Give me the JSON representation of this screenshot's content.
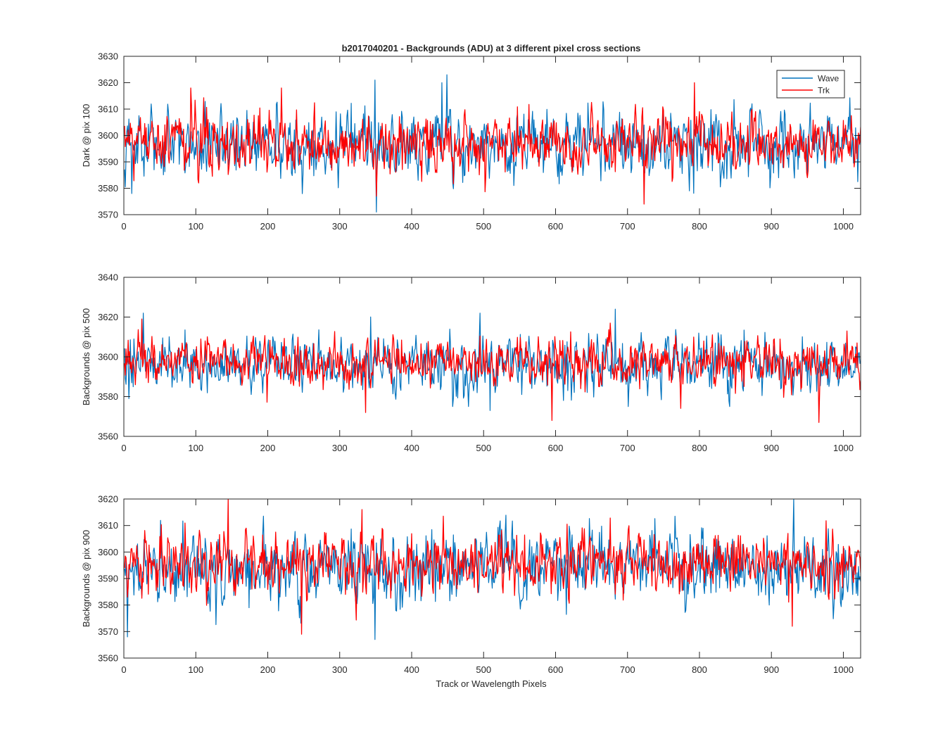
{
  "figure": {
    "title": "b2017040201 - Backgrounds (ADU) at 3 different pixel cross sections",
    "xlabel": "Track or Wavelength Pixels"
  },
  "legend": {
    "placement": "top-right",
    "entries": [
      {
        "name": "Wave",
        "color": "#0072BD"
      },
      {
        "name": "Trk",
        "color": "#FF0000"
      }
    ]
  },
  "chart_data": [
    {
      "type": "line",
      "ylabel": "Dark @ pix 100",
      "xlim": [
        0,
        1024
      ],
      "ylim": [
        3570,
        3630
      ],
      "xticks": [
        "0",
        "100",
        "200",
        "300",
        "400",
        "500",
        "600",
        "700",
        "800",
        "900",
        "1000"
      ],
      "yticks": [
        "3570",
        "3580",
        "3590",
        "3600",
        "3610",
        "3620",
        "3630"
      ],
      "series": [
        {
          "name": "Wave",
          "color": "#0072BD",
          "mean": 3597,
          "std": 6.5,
          "min": 3571,
          "max": 3623,
          "extremes": [
            [
              350,
              3571
            ],
            [
              348,
              3621
            ],
            [
              448,
              3623
            ],
            [
              441,
              3620
            ],
            [
              10,
              3578
            ]
          ]
        },
        {
          "name": "Trk",
          "color": "#FF0000",
          "mean": 3597,
          "std": 5.5,
          "min": 3574,
          "max": 3620,
          "extremes": [
            [
              92,
              3618
            ],
            [
              218,
              3618
            ],
            [
              792,
              3620
            ],
            [
              722,
              3574
            ],
            [
              350,
              3577
            ]
          ]
        }
      ]
    },
    {
      "type": "line",
      "ylabel": "Backgrounds @ pix 500",
      "xlim": [
        0,
        1024
      ],
      "ylim": [
        3560,
        3640
      ],
      "xticks": [
        "0",
        "100",
        "200",
        "300",
        "400",
        "500",
        "600",
        "700",
        "800",
        "900",
        "1000"
      ],
      "yticks": [
        "3560",
        "3580",
        "3600",
        "3620",
        "3640"
      ],
      "series": [
        {
          "name": "Wave",
          "color": "#0072BD",
          "mean": 3597,
          "std": 7,
          "min": 3573,
          "max": 3624,
          "extremes": [
            [
              682,
              3624
            ],
            [
              494,
              3622
            ],
            [
              6,
              3579
            ],
            [
              508,
              3573
            ]
          ]
        },
        {
          "name": "Trk",
          "color": "#FF0000",
          "mean": 3597,
          "std": 6,
          "min": 3567,
          "max": 3619,
          "extremes": [
            [
              24,
              3619
            ],
            [
              594,
              3568
            ],
            [
              965,
              3567
            ],
            [
              335,
              3572
            ]
          ]
        }
      ]
    },
    {
      "type": "line",
      "ylabel": "Backgrounds @ pix 900",
      "xlim": [
        0,
        1024
      ],
      "ylim": [
        3560,
        3620
      ],
      "xticks": [
        "0",
        "100",
        "200",
        "300",
        "400",
        "500",
        "600",
        "700",
        "800",
        "900",
        "1000"
      ],
      "yticks": [
        "3560",
        "3570",
        "3580",
        "3590",
        "3600",
        "3610",
        "3620"
      ],
      "series": [
        {
          "name": "Wave",
          "color": "#0072BD",
          "mean": 3594,
          "std": 6.5,
          "min": 3567,
          "max": 3620,
          "extremes": [
            [
              348,
              3567
            ],
            [
              4,
              3568
            ],
            [
              930,
              3620
            ]
          ]
        },
        {
          "name": "Trk",
          "color": "#FF0000",
          "mean": 3596,
          "std": 5.5,
          "min": 3569,
          "max": 3620,
          "extremes": [
            [
              144,
              3620
            ],
            [
              246,
              3569
            ],
            [
              928,
              3572
            ],
            [
              330,
              3616
            ]
          ]
        }
      ]
    }
  ]
}
